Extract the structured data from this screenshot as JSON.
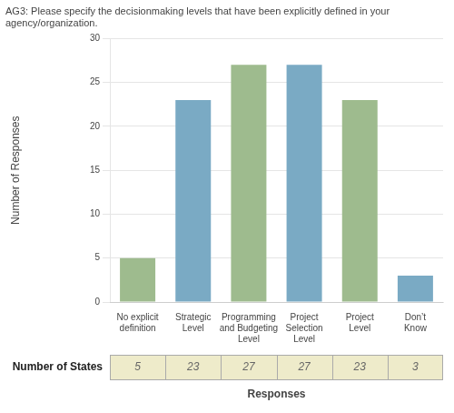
{
  "chart_data": {
    "type": "bar",
    "title": [
      "AG3: Please specify the decisionmaking levels that have been explicitly defined in your",
      "agency/organization."
    ],
    "categories": [
      "No explicit\ndefinition",
      "Strategic\nLevel",
      "Programming\nand Budgeting\nLevel",
      "Project\nSelection\nLevel",
      "Project\nLevel",
      "Don’t\nKnow"
    ],
    "values": [
      5,
      23,
      27,
      27,
      23,
      3
    ],
    "colors": [
      "#9ebb8e",
      "#7aaac4",
      "#9ebb8e",
      "#7aaac4",
      "#9ebb8e",
      "#7aaac4"
    ],
    "ylabel": "Number of Responses",
    "xlabel": "Responses",
    "ylim": [
      0,
      30
    ],
    "yticks": [
      0,
      5,
      10,
      15,
      20,
      25,
      30
    ],
    "grid": true,
    "data_labels": true,
    "table_label": "Number of States"
  }
}
